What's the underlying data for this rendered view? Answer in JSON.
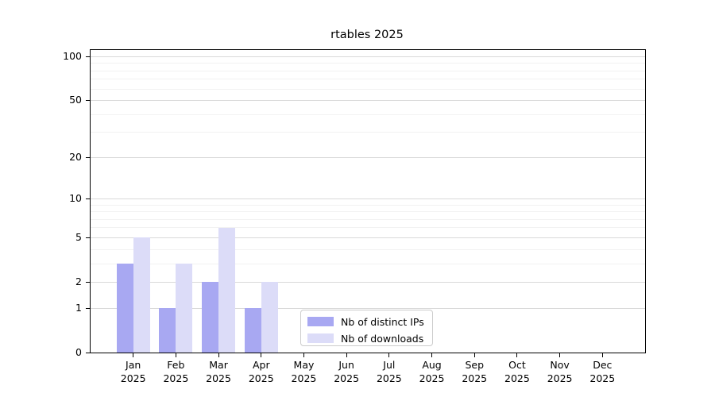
{
  "title": "rtables 2025",
  "chart_data": {
    "type": "bar",
    "title": "rtables 2025",
    "xlabel": "",
    "ylabel": "",
    "categories": [
      "Jan",
      "Feb",
      "Mar",
      "Apr",
      "May",
      "Jun",
      "Jul",
      "Aug",
      "Sep",
      "Oct",
      "Nov",
      "Dec"
    ],
    "year_label": "2025",
    "series": [
      {
        "name": "Nb of distinct IPs",
        "color": "#a8a8f2",
        "values": [
          3,
          1,
          2,
          1,
          0,
          0,
          0,
          0,
          0,
          0,
          0,
          0
        ]
      },
      {
        "name": "Nb of downloads",
        "color": "#dcdcf8",
        "values": [
          5,
          3,
          6,
          2,
          0,
          0,
          0,
          0,
          0,
          0,
          0,
          0
        ]
      }
    ],
    "y_scale": "log10(value+1)",
    "y_axis_ticks": [
      0,
      1,
      2,
      5,
      10,
      20,
      50,
      100
    ],
    "y_minor_gridlines": [
      3,
      4,
      6,
      7,
      8,
      9,
      30,
      40,
      60,
      70,
      80,
      90
    ],
    "y_top_value": 111,
    "grid": "horizontal",
    "legend_position": "inside-bottom-center"
  },
  "colors": {
    "major_gridline": "#d9d9d9",
    "minor_gridline": "#f2f2f2",
    "axis": "#000000",
    "legend_border": "#cccccc",
    "background": "#ffffff"
  }
}
